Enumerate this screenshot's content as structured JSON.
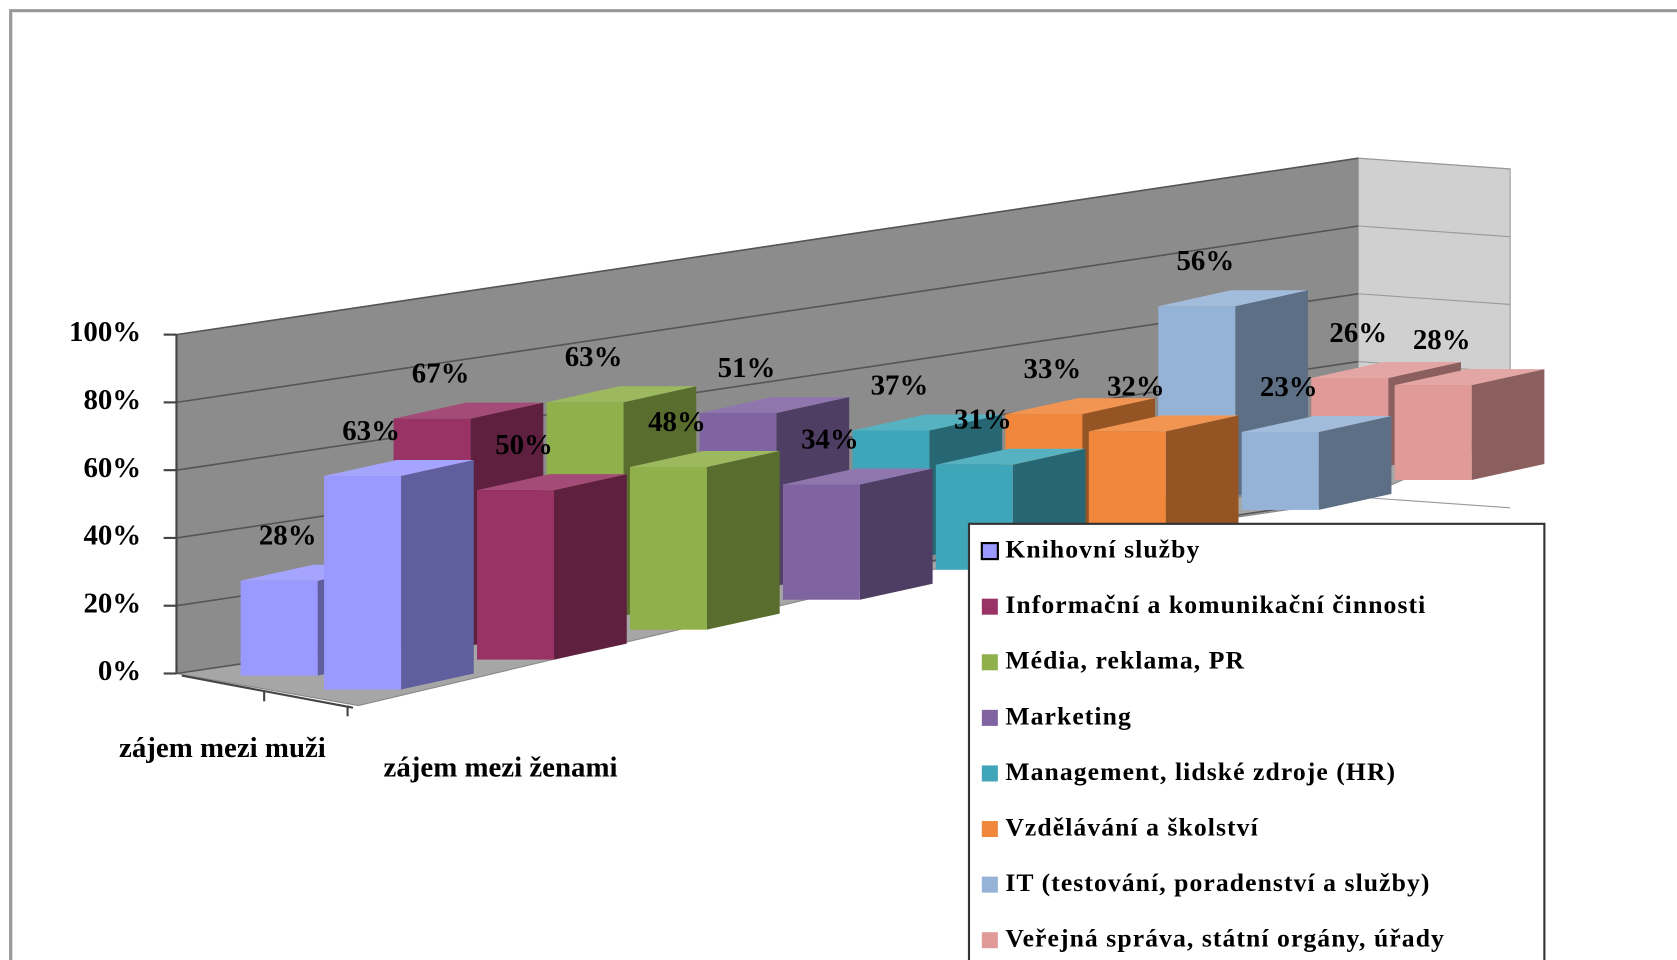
{
  "chart_data": {
    "type": "bar3d",
    "categories": [
      "zájem mezi muži",
      "zájem mezi ženami"
    ],
    "series": [
      {
        "name": "Knihovní služby",
        "color": "#9999ff",
        "values": [
          28,
          63
        ],
        "value_labels": [
          "28%",
          "63%"
        ]
      },
      {
        "name": "Informační a komunikační činnosti",
        "color": "#993366",
        "values": [
          67,
          50
        ],
        "value_labels": [
          "67%",
          "50%"
        ]
      },
      {
        "name": "Média, reklama, PR",
        "color": "#8fb04a",
        "values": [
          63,
          48
        ],
        "value_labels": [
          "63%",
          "48%"
        ]
      },
      {
        "name": "Marketing",
        "color": "#8064a2",
        "values": [
          51,
          34
        ],
        "value_labels": [
          "51%",
          "34%"
        ]
      },
      {
        "name": "Management, lidské zdroje (HR)",
        "color": "#3fa6b9",
        "values": [
          37,
          31
        ],
        "value_labels": [
          "37%",
          "31%"
        ]
      },
      {
        "name": "Vzdělávání a školství",
        "color": "#f0873a",
        "values": [
          33,
          32
        ],
        "value_labels": [
          "33%",
          "32%"
        ]
      },
      {
        "name": "IT (testování, poradenství a služby)",
        "color": "#95b3d7",
        "values": [
          56,
          23
        ],
        "value_labels": [
          "56%",
          "23%"
        ]
      },
      {
        "name": "Veřejná správa, státní orgány, úřady",
        "color": "#e09a98",
        "values": [
          26,
          28
        ],
        "value_labels": [
          "26%",
          "28%"
        ]
      }
    ],
    "ylim": [
      0,
      100
    ],
    "yticks": [
      {
        "value": 0,
        "label": "0%"
      },
      {
        "value": 20,
        "label": "20%"
      },
      {
        "value": 40,
        "label": "40%"
      },
      {
        "value": 60,
        "label": "60%"
      },
      {
        "value": 80,
        "label": "80%"
      },
      {
        "value": 100,
        "label": "100%"
      }
    ],
    "grid": true,
    "legend": "lower right"
  }
}
